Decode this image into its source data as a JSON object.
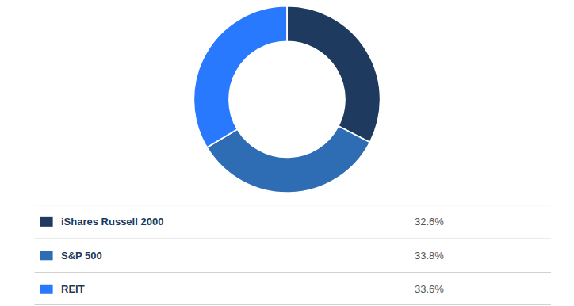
{
  "chart_data": {
    "type": "pie",
    "categories": [
      "iShares Russell 2000",
      "S&P 500",
      "REIT"
    ],
    "values": [
      32.6,
      33.8,
      33.6
    ],
    "value_labels": [
      "32.6%",
      "33.8%",
      "33.6%"
    ],
    "colors": [
      "#1e3a5f",
      "#2e6db4",
      "#2979ff"
    ]
  }
}
